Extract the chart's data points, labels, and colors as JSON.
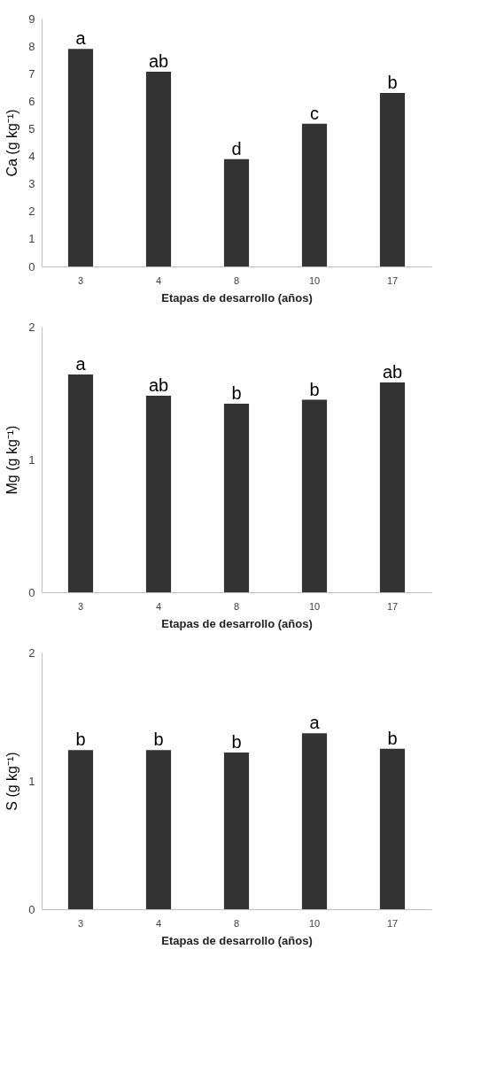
{
  "chart_data": [
    {
      "type": "bar",
      "ylabel": "Ca (g kg⁻¹)",
      "xlabel": "Etapas de desarrollo (años)",
      "categories": [
        "3",
        "4",
        "8",
        "10",
        "17"
      ],
      "values": [
        7.9,
        7.07,
        3.9,
        5.18,
        6.3
      ],
      "color": "#333333",
      "ylim": [
        0,
        9
      ],
      "yticks": [
        0,
        1,
        2,
        3,
        4,
        5,
        6,
        7,
        8,
        9
      ],
      "grid": false,
      "annotations": [
        {
          "text": "a",
          "x": "3",
          "y": 7.9
        },
        {
          "text": "ab",
          "x": "4",
          "y": 7.07
        },
        {
          "text": "d",
          "x": "8",
          "y": 3.9
        },
        {
          "text": "c",
          "x": "10",
          "y": 5.18
        },
        {
          "text": "b",
          "x": "17",
          "y": 6.3
        }
      ]
    },
    {
      "type": "bar",
      "ylabel": "Mg (g kg⁻¹)",
      "xlabel": "Etapas de desarrollo (años)",
      "categories": [
        "3",
        "4",
        "8",
        "10",
        "17"
      ],
      "values": [
        1.64,
        1.48,
        1.42,
        1.45,
        1.58
      ],
      "color": "#333333",
      "ylim": [
        0,
        2
      ],
      "yticks": [
        0,
        1,
        2
      ],
      "grid": false,
      "annotations": [
        {
          "text": "a",
          "x": "3",
          "y": 1.64
        },
        {
          "text": "ab",
          "x": "4",
          "y": 1.48
        },
        {
          "text": "b",
          "x": "8",
          "y": 1.42
        },
        {
          "text": "b",
          "x": "10",
          "y": 1.45
        },
        {
          "text": "ab",
          "x": "17",
          "y": 1.58
        }
      ]
    },
    {
      "type": "bar",
      "ylabel": "S (g kg⁻¹)",
      "xlabel": "Etapas de desarrollo (años)",
      "categories": [
        "3",
        "4",
        "8",
        "10",
        "17"
      ],
      "values": [
        1.24,
        1.24,
        1.22,
        1.37,
        1.25
      ],
      "color": "#333333",
      "ylim": [
        0,
        2
      ],
      "yticks": [
        0,
        1,
        2
      ],
      "grid": false,
      "annotations": [
        {
          "text": "b",
          "x": "3",
          "y": 1.24
        },
        {
          "text": "b",
          "x": "4",
          "y": 1.24
        },
        {
          "text": "b",
          "x": "8",
          "y": 1.22
        },
        {
          "text": "a",
          "x": "10",
          "y": 1.37
        },
        {
          "text": "b",
          "x": "17",
          "y": 1.25
        }
      ]
    }
  ]
}
